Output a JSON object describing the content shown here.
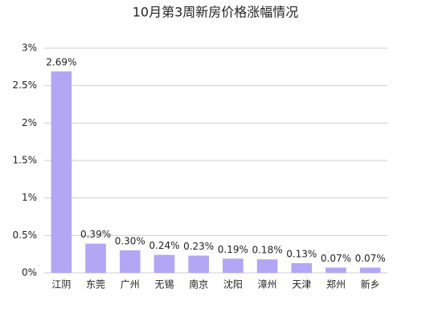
{
  "chart_data": {
    "type": "bar",
    "title": "10月第3周新房价格涨幅情况",
    "categories": [
      "江阴",
      "东莞",
      "广州",
      "无锡",
      "南京",
      "沈阳",
      "漳州",
      "天津",
      "郑州",
      "新乡"
    ],
    "values": [
      2.69,
      0.39,
      0.3,
      0.24,
      0.23,
      0.19,
      0.18,
      0.13,
      0.07,
      0.07
    ],
    "value_labels": [
      "2.69%",
      "0.39%",
      "0.30%",
      "0.24%",
      "0.23%",
      "0.19%",
      "0.18%",
      "0.13%",
      "0.07%",
      "0.07%"
    ],
    "color": "#b3a6f4",
    "ylim": [
      0,
      3
    ],
    "yticks": [
      {
        "value": 0,
        "label": "0%"
      },
      {
        "value": 0.5,
        "label": "0.5%"
      },
      {
        "value": 1,
        "label": "1%"
      },
      {
        "value": 1.5,
        "label": "1.5%"
      },
      {
        "value": 2,
        "label": "2%"
      },
      {
        "value": 2.5,
        "label": "2.5%"
      },
      {
        "value": 3,
        "label": "3%"
      }
    ],
    "grid": true
  }
}
